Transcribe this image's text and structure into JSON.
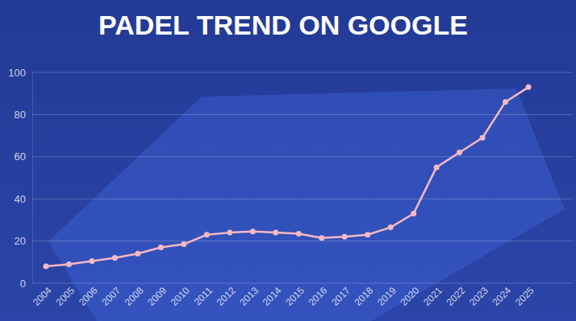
{
  "chart_data": {
    "type": "line",
    "title": "PADEL TREND ON GOOGLE",
    "categories": [
      "2004",
      "2005",
      "2006",
      "2007",
      "2008",
      "2009",
      "2010",
      "2011",
      "2012",
      "2013",
      "2014",
      "2015",
      "2016",
      "2017",
      "2018",
      "2019",
      "2020",
      "2021",
      "2022",
      "2023",
      "2024",
      "2025"
    ],
    "values": [
      8,
      9,
      10.5,
      12,
      14,
      17,
      18.5,
      23,
      24,
      24.5,
      24,
      23.5,
      21.5,
      22,
      23,
      26.5,
      33,
      55,
      62,
      69,
      86,
      93
    ],
    "color": "#f6b8c4",
    "marker": "circle",
    "ylim": [
      0,
      100
    ],
    "yticks": [
      0,
      20,
      40,
      60,
      80,
      100
    ],
    "grid": true
  }
}
